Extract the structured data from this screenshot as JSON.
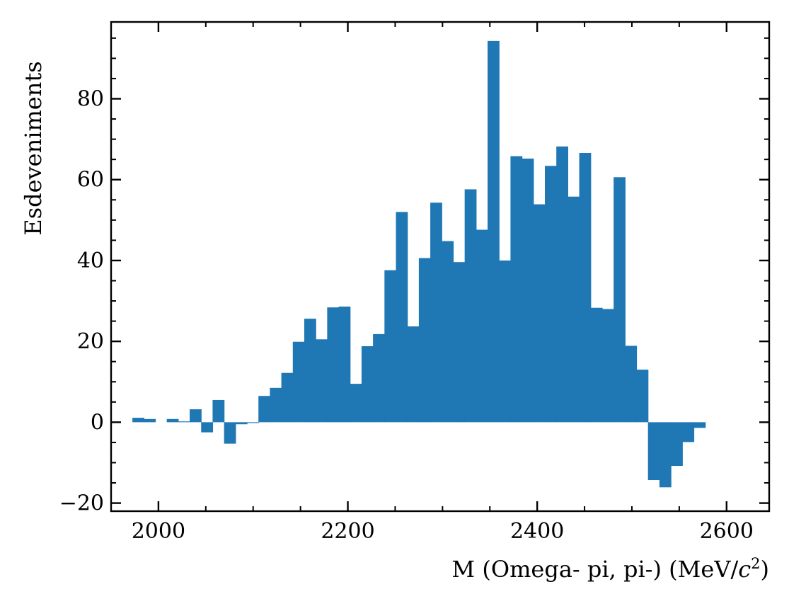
{
  "chart_data": {
    "type": "bar",
    "xlabel": "M (Omega- pi, pi-) (MeV/",
    "xlabel_unit_symbol": "c",
    "xlabel_unit_exponent": "2",
    "xlabel_suffix": ")",
    "ylabel": "Esdeveniments",
    "xlim": [
      1950,
      2645
    ],
    "ylim": [
      -22,
      99
    ],
    "x_major_ticks": [
      2000,
      2200,
      2400,
      2600
    ],
    "x_tick_labels": [
      "2000",
      "2200",
      "2400",
      "2600"
    ],
    "x_minor_step": 50,
    "y_major_ticks": [
      -20,
      0,
      20,
      40,
      60,
      80
    ],
    "y_tick_labels": [
      "−20",
      "0",
      "20",
      "40",
      "60",
      "80"
    ],
    "y_minor_step": 5,
    "tick_direction": "in",
    "ticks_on_all_sides": true,
    "grid": false,
    "bar_color": "#1f77b4",
    "bin_width": 12.1,
    "bin_edges_start": 1972.5,
    "values": [
      1.1,
      0.8,
      0.0,
      0.8,
      0.2,
      3.2,
      -2.5,
      5.5,
      -5.3,
      -0.5,
      -0.2,
      6.5,
      8.5,
      12.2,
      19.9,
      25.6,
      20.5,
      28.4,
      28.6,
      9.5,
      18.8,
      21.8,
      37.6,
      52.0,
      23.7,
      40.6,
      54.3,
      44.8,
      39.6,
      57.6,
      47.6,
      94.3,
      40.0,
      65.8,
      65.2,
      53.9,
      63.4,
      68.2,
      55.8,
      66.6,
      28.3,
      28.0,
      60.6,
      18.9,
      13.0,
      -14.3,
      -16.1,
      -10.8,
      -4.9,
      -1.4
    ]
  }
}
